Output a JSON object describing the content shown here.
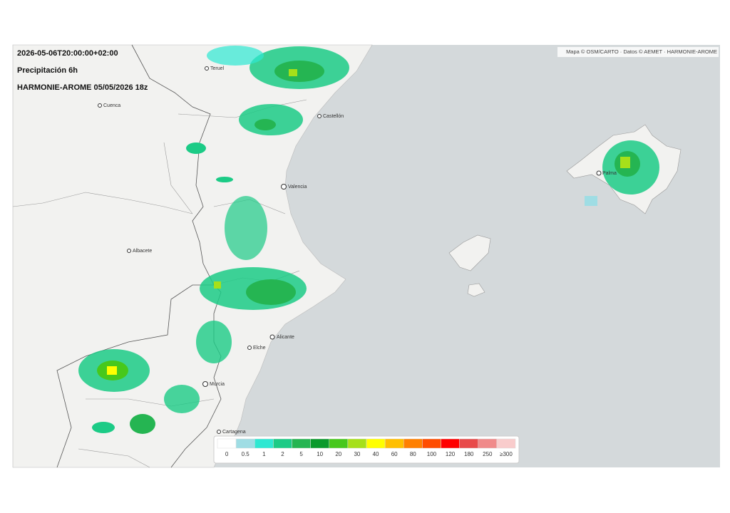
{
  "header": {
    "timestamp": "2026-05-06T20:00:00+02:00",
    "variable": "Precipitación 6h",
    "model": "HARMONIE-AROME 05/05/2026 18z"
  },
  "attribution": "Mapa © OSM/CARTO · Datos © AEMET · HARMONIE-AROME",
  "cities": [
    "Teruel",
    "Cuenca",
    "Castellón",
    "Valencia",
    "Albacete",
    "Alicante",
    "Elche",
    "Murcia",
    "Cartagena",
    "Palma"
  ],
  "legend": [
    {
      "label": "0",
      "color": "#ffffff"
    },
    {
      "label": "0.5",
      "color": "#9fdde4"
    },
    {
      "label": "1",
      "color": "#2ee8d2"
    },
    {
      "label": "2",
      "color": "#1ccb86"
    },
    {
      "label": "5",
      "color": "#25b552"
    },
    {
      "label": "10",
      "color": "#0a9a2c"
    },
    {
      "label": "20",
      "color": "#47c81c"
    },
    {
      "label": "30",
      "color": "#a6e01a"
    },
    {
      "label": "40",
      "color": "#ffff00"
    },
    {
      "label": "60",
      "color": "#ffbf00"
    },
    {
      "label": "80",
      "color": "#ff8000"
    },
    {
      "label": "100",
      "color": "#ff4d00"
    },
    {
      "label": "120",
      "color": "#ff0000"
    },
    {
      "label": "180",
      "color": "#e84a4a"
    },
    {
      "label": "250",
      "color": "#f08a8a"
    },
    {
      "label": "≥300",
      "color": "#f9cccc"
    }
  ]
}
